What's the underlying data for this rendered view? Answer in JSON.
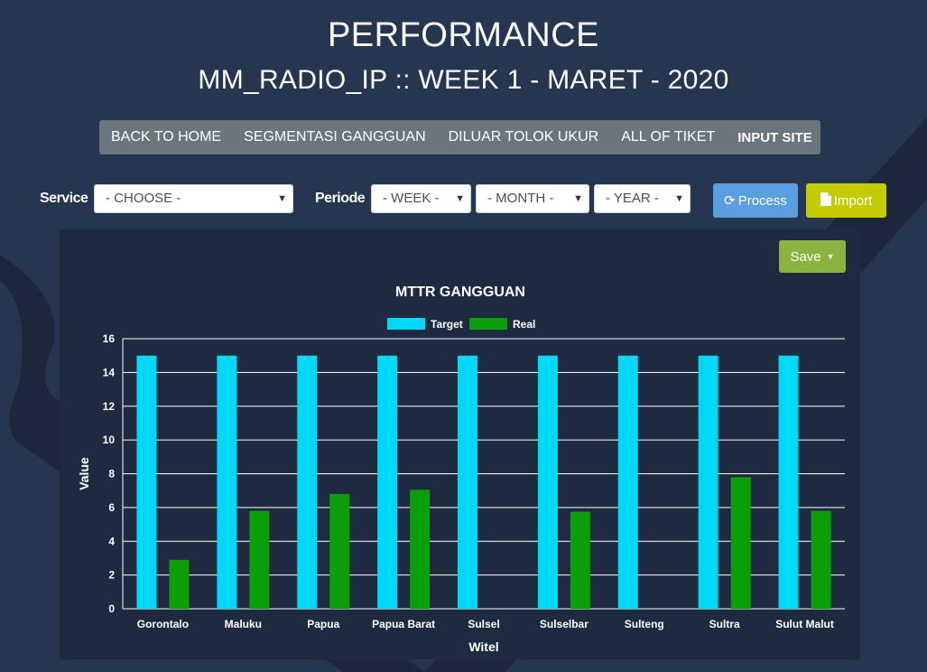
{
  "page": {
    "title": "PERFORMANCE",
    "subtitle": "MM_RADIO_IP :: WEEK 1 - MARET - 2020"
  },
  "nav": {
    "items": [
      "BACK TO HOME",
      "SEGMENTASI GANGGUAN",
      "DILUAR TOLOK UKUR",
      "ALL OF TIKET",
      "INPUT SITE"
    ]
  },
  "filters": {
    "service_label": "Service",
    "service_value": "- CHOOSE -",
    "periode_label": "Periode",
    "week_value": "- WEEK -",
    "month_value": "- MONTH -",
    "year_value": "- YEAR -",
    "process_label": "Process",
    "import_label": "Import"
  },
  "chart_panel": {
    "save_label": "Save"
  },
  "colors": {
    "background": "#263550",
    "panel": "#1d2a40",
    "target": "#00d8f8",
    "real": "#0ba00b",
    "process_button": "#5b9ee0",
    "import_button": "#c2cc00",
    "save_button": "#8bb33f",
    "nav_bar": "#6c757d"
  },
  "chart_data": {
    "type": "bar",
    "title": "MTTR GANGGUAN",
    "xlabel": "Witel",
    "ylabel": "Value",
    "ylim": [
      0,
      16
    ],
    "yticks": [
      0,
      2,
      4,
      6,
      8,
      10,
      12,
      14,
      16
    ],
    "grid": true,
    "legend_position": "top-center",
    "categories": [
      "Gorontalo",
      "Maluku",
      "Papua",
      "Papua Barat",
      "Sulsel",
      "Sulselbar",
      "Sulteng",
      "Sultra",
      "Sulut Malut"
    ],
    "series": [
      {
        "name": "Target",
        "values": [
          15,
          15,
          15,
          15,
          15,
          15,
          15,
          15,
          15
        ]
      },
      {
        "name": "Real",
        "values": [
          2.9,
          5.8,
          6.8,
          7.05,
          0,
          5.75,
          0,
          7.8,
          5.8
        ]
      }
    ]
  }
}
